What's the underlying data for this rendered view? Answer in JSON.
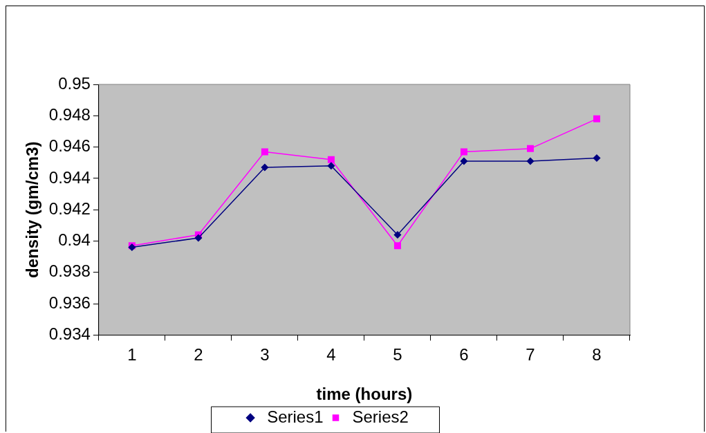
{
  "chart_data": {
    "type": "line",
    "xlabel": "time (hours)",
    "ylabel": "density (gm/cm3)",
    "categories": [
      "1",
      "2",
      "3",
      "4",
      "5",
      "6",
      "7",
      "8"
    ],
    "series": [
      {
        "name": "Series1",
        "color": "#000080",
        "marker": "diamond",
        "values": [
          0.9396,
          0.9402,
          0.9447,
          0.9448,
          0.9404,
          0.9451,
          0.9451,
          0.9453
        ]
      },
      {
        "name": "Series2",
        "color": "#ff00ff",
        "marker": "square",
        "values": [
          0.9397,
          0.9404,
          0.9457,
          0.9452,
          0.9397,
          0.9457,
          0.9459,
          0.9478
        ]
      }
    ],
    "ylim": [
      0.934,
      0.95
    ],
    "yticks": [
      0.934,
      0.936,
      0.938,
      0.94,
      0.942,
      0.944,
      0.946,
      0.948,
      0.95
    ],
    "grid": false,
    "legend": "bottom",
    "line_style": "solid"
  }
}
